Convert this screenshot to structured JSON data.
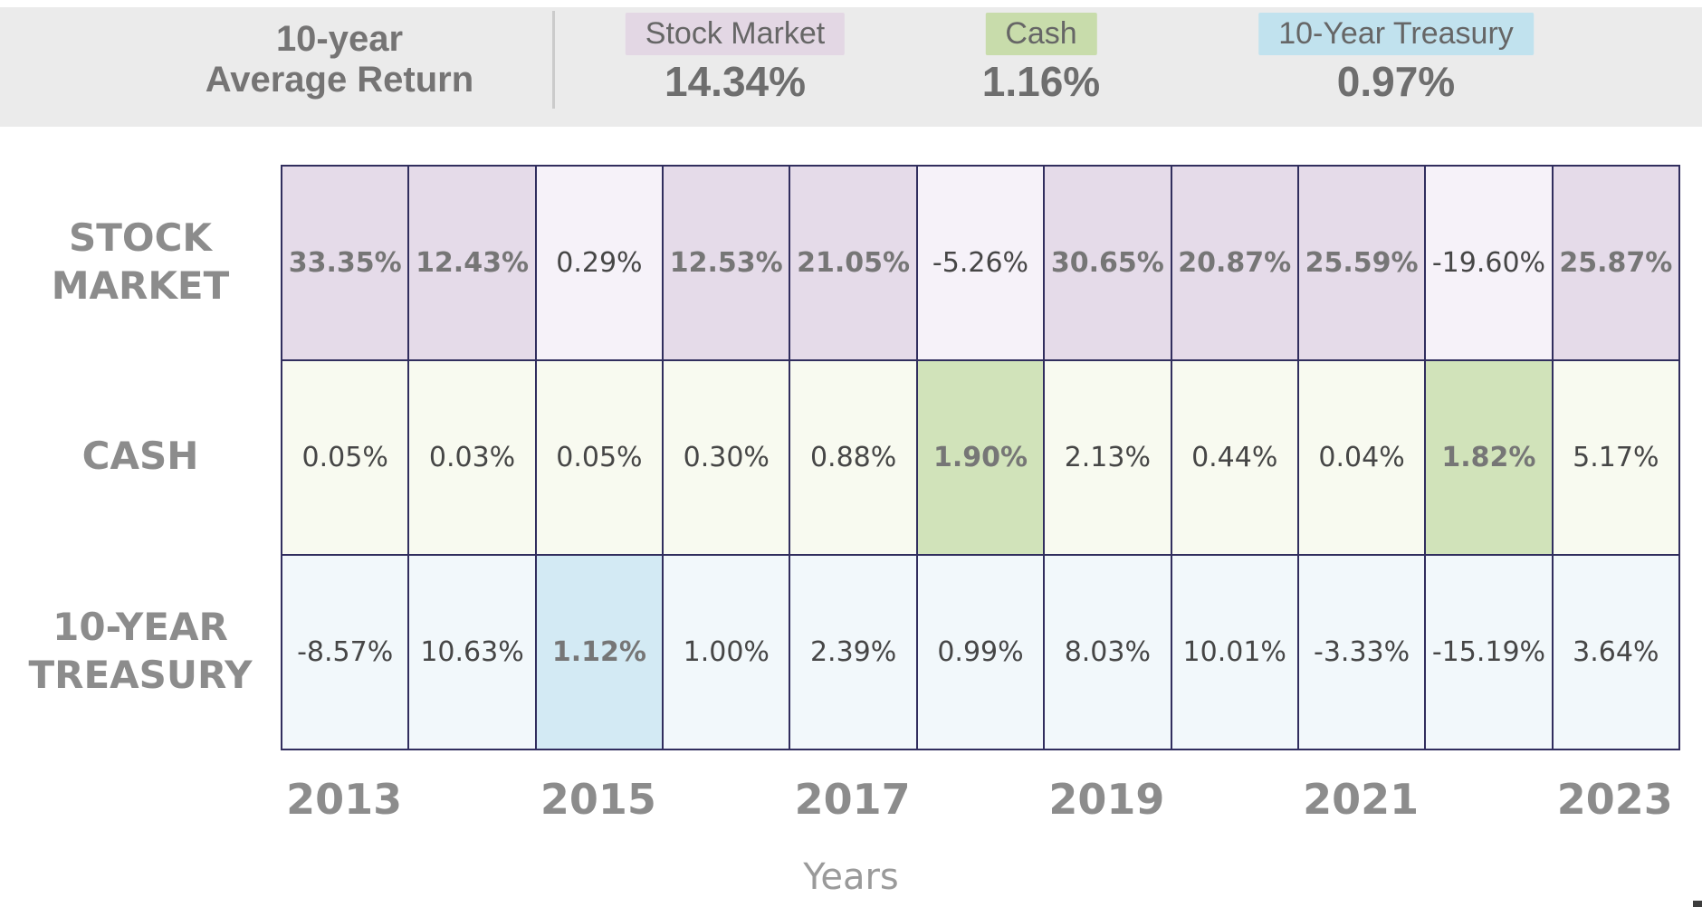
{
  "header": {
    "title_line1": "10-year",
    "title_line2": "Average Return",
    "legend": [
      {
        "name": "Stock Market",
        "value": "14.34%",
        "chip_color": "#e3d7e4"
      },
      {
        "name": "Cash",
        "value": "1.16%",
        "chip_color": "#c8dcab"
      },
      {
        "name": "10-Year Treasury",
        "value": "0.97%",
        "chip_color": "#c1e2ee"
      }
    ]
  },
  "table": {
    "rows": [
      {
        "kind": "stock",
        "label_lines": [
          "STOCK",
          "MARKET"
        ],
        "cells": [
          {
            "text": "33.35%",
            "highlight": true
          },
          {
            "text": "12.43%",
            "highlight": true
          },
          {
            "text": "0.29%",
            "highlight": false
          },
          {
            "text": "12.53%",
            "highlight": true
          },
          {
            "text": "21.05%",
            "highlight": true
          },
          {
            "text": "-5.26%",
            "highlight": false
          },
          {
            "text": "30.65%",
            "highlight": true
          },
          {
            "text": "20.87%",
            "highlight": true
          },
          {
            "text": "25.59%",
            "highlight": true
          },
          {
            "text": "-19.60%",
            "highlight": false
          },
          {
            "text": "25.87%",
            "highlight": true
          }
        ]
      },
      {
        "kind": "cash",
        "label_lines": [
          "CASH"
        ],
        "cells": [
          {
            "text": "0.05%",
            "highlight": false
          },
          {
            "text": "0.03%",
            "highlight": false
          },
          {
            "text": "0.05%",
            "highlight": false
          },
          {
            "text": "0.30%",
            "highlight": false
          },
          {
            "text": "0.88%",
            "highlight": false
          },
          {
            "text": "1.90%",
            "highlight": true
          },
          {
            "text": "2.13%",
            "highlight": false
          },
          {
            "text": "0.44%",
            "highlight": false
          },
          {
            "text": "0.04%",
            "highlight": false
          },
          {
            "text": "1.82%",
            "highlight": true
          },
          {
            "text": "5.17%",
            "highlight": false
          }
        ]
      },
      {
        "kind": "treasury",
        "label_lines": [
          "10-YEAR",
          "TREASURY"
        ],
        "cells": [
          {
            "text": "-8.57%",
            "highlight": false
          },
          {
            "text": "10.63%",
            "highlight": false
          },
          {
            "text": "1.12%",
            "highlight": true
          },
          {
            "text": "1.00%",
            "highlight": false
          },
          {
            "text": "2.39%",
            "highlight": false
          },
          {
            "text": "0.99%",
            "highlight": false
          },
          {
            "text": "8.03%",
            "highlight": false
          },
          {
            "text": "10.01%",
            "highlight": false
          },
          {
            "text": "-3.33%",
            "highlight": false
          },
          {
            "text": "-15.19%",
            "highlight": false
          },
          {
            "text": "3.64%",
            "highlight": false
          }
        ]
      }
    ]
  },
  "axis": {
    "ticks": [
      "2013",
      "2015",
      "2017",
      "2019",
      "2021",
      "2023"
    ],
    "label": "Years"
  },
  "colors": {
    "header_band": "#ebebeb",
    "border": "#312e5e",
    "stock_dim": "#f6f2f9",
    "stock_highlight": "#e5dbe9",
    "cash": "#f8faf0",
    "cash_highlight": "#d1e3ba",
    "treasury": "#f2f8fb",
    "treasury_highlight": "#d3eaf4"
  },
  "chart_data": {
    "type": "table",
    "title": "10-year Average Return",
    "xlabel": "Years",
    "categories": [
      "2013",
      "2014",
      "2015",
      "2016",
      "2017",
      "2018",
      "2019",
      "2020",
      "2021",
      "2022",
      "2023"
    ],
    "series": [
      {
        "name": "Stock Market",
        "average_return_pct": 14.34,
        "values": [
          33.35,
          12.43,
          0.29,
          12.53,
          21.05,
          -5.26,
          30.65,
          20.87,
          25.59,
          -19.6,
          25.87
        ]
      },
      {
        "name": "Cash",
        "average_return_pct": 1.16,
        "values": [
          0.05,
          0.03,
          0.05,
          0.3,
          0.88,
          1.9,
          2.13,
          0.44,
          0.04,
          1.82,
          5.17
        ]
      },
      {
        "name": "10-Year Treasury",
        "average_return_pct": 0.97,
        "values": [
          -8.57,
          10.63,
          1.12,
          1.0,
          2.39,
          0.99,
          8.03,
          10.01,
          -3.33,
          -15.19,
          3.64
        ]
      }
    ],
    "highlighted_best_asset_by_year": {
      "Stock Market": [
        "2013",
        "2014",
        "2016",
        "2017",
        "2019",
        "2020",
        "2021",
        "2023"
      ],
      "Cash": [
        "2018",
        "2022"
      ],
      "10-Year Treasury": [
        "2015"
      ]
    },
    "legend_position": "top",
    "grid": true
  }
}
